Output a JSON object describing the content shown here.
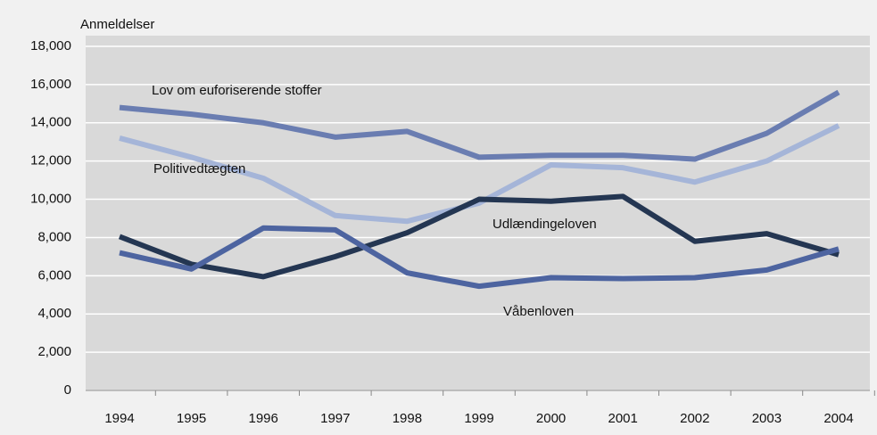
{
  "chart_data": {
    "type": "line",
    "y_label": "Anmeldelser",
    "categories": [
      "1994",
      "1995",
      "1996",
      "1997",
      "1998",
      "1999",
      "2000",
      "2001",
      "2002",
      "2003",
      "2004"
    ],
    "series": [
      {
        "name": "Lov om euforiserende stoffer",
        "color": "#6a7db1",
        "values": [
          14800,
          14450,
          14000,
          13250,
          13550,
          12200,
          12300,
          12300,
          12100,
          13450,
          15600
        ]
      },
      {
        "name": "Politivedtægten",
        "color": "#a5b5d8",
        "values": [
          13200,
          12200,
          11100,
          9150,
          8850,
          9800,
          11800,
          11650,
          10900,
          12000,
          13850
        ]
      },
      {
        "name": "Udlændingeloven",
        "color": "#243652",
        "values": [
          8050,
          6600,
          5950,
          7000,
          8250,
          10000,
          9900,
          10150,
          7800,
          8200,
          7100
        ]
      },
      {
        "name": "Våbenloven",
        "color": "#4d64a0",
        "values": [
          7200,
          6350,
          8500,
          8400,
          6150,
          5450,
          5900,
          5850,
          5900,
          6300,
          7400
        ]
      }
    ],
    "ylim": [
      0,
      18000
    ],
    "yticks": [
      0,
      {
        "value": 2000,
        "label": "2,000"
      },
      {
        "value": 4000,
        "label": "4,000"
      },
      {
        "value": 6000,
        "label": "6,000"
      },
      {
        "value": 8000,
        "label": "8,000"
      },
      {
        "value": 10000,
        "label": "10,000"
      },
      {
        "value": 12000,
        "label": "12,000"
      },
      {
        "value": 14000,
        "label": "14,000"
      },
      {
        "value": 16000,
        "label": "16,000"
      },
      {
        "value": 18000,
        "label": "18,000"
      }
    ],
    "grid": true
  }
}
